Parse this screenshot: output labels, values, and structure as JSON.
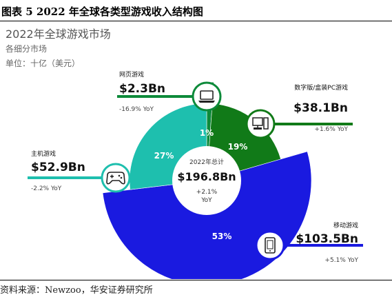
{
  "caption": "图表 5 2022 年全球各类型游戏收入结构图",
  "source": "资料来源：Newzoo，华安证券研究所",
  "header": {
    "title": "2022年全球游戏市场",
    "subtitle": "各细分市场",
    "unit": "单位：十亿（美元）"
  },
  "chart_data": {
    "type": "pie",
    "variant": "donut",
    "center": {
      "label": "2022年总计",
      "value": "$196.8Bn",
      "growth": "+2.1%",
      "growth_unit": "YoY"
    },
    "segments": [
      {
        "name": "网页游戏",
        "value": 2.3,
        "value_label": "$2.3Bn",
        "yoy": "-16.9% YoY",
        "percent": 1,
        "percent_label": "1%",
        "color": "#0d8a3a",
        "icon": "laptop-icon"
      },
      {
        "name": "数字版/盒装PC游戏",
        "value": 38.1,
        "value_label": "$38.1Bn",
        "yoy": "+1.6% YoY",
        "percent": 19,
        "percent_label": "19%",
        "color": "#117a18",
        "icon": "desktop-pc-icon"
      },
      {
        "name": "移动游戏",
        "value": 103.5,
        "value_label": "$103.5Bn",
        "yoy": "+5.1% YoY",
        "percent": 53,
        "percent_label": "53%",
        "color": "#1a1ae0",
        "icon": "mobile-phone-icon"
      },
      {
        "name": "主机游戏",
        "value": 52.9,
        "value_label": "$52.9Bn",
        "yoy": "-2.2% YoY",
        "percent": 27,
        "percent_label": "27%",
        "color": "#1ebfae",
        "icon": "gamepad-icon"
      }
    ]
  }
}
